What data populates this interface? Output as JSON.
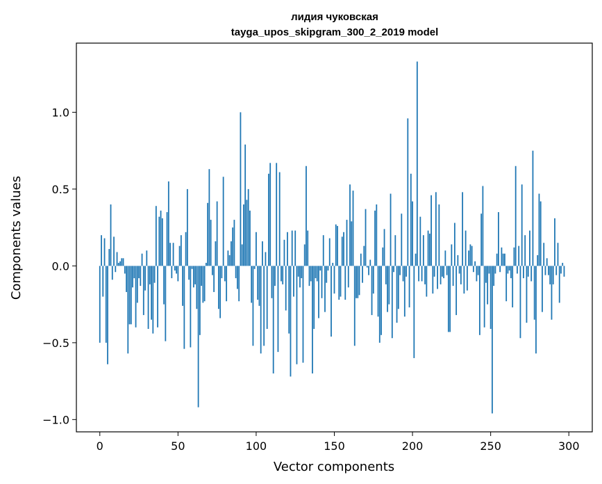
{
  "chart_data": {
    "type": "bar",
    "title": "лидия чуковская",
    "subtitle": "tayga_upos_skipgram_300_2_2019 model",
    "xlabel": "Vector components",
    "ylabel": "Components values",
    "xlim": [
      -15,
      315
    ],
    "ylim": [
      -1.08,
      1.45
    ],
    "xticks": [
      0,
      50,
      100,
      150,
      200,
      250,
      300
    ],
    "yticks": [
      -1.0,
      -0.5,
      0.0,
      0.5,
      1.0
    ],
    "xtick_labels": [
      "0",
      "50",
      "100",
      "150",
      "200",
      "250",
      "300"
    ],
    "ytick_labels": [
      "−1.0",
      "−0.5",
      "0.0",
      "0.5",
      "1.0"
    ],
    "bar_color": "#1f77b4",
    "grid": false,
    "legend": "none",
    "values": [
      -0.5,
      0.2,
      -0.2,
      0.18,
      -0.5,
      -0.64,
      0.11,
      0.4,
      -0.09,
      0.19,
      -0.04,
      0.09,
      0.02,
      0.03,
      0.05,
      0.05,
      -0.05,
      -0.17,
      -0.57,
      -0.38,
      -0.38,
      -0.14,
      -0.08,
      -0.4,
      -0.24,
      -0.08,
      -0.13,
      0.08,
      -0.32,
      -0.16,
      0.1,
      -0.41,
      -0.12,
      -0.35,
      -0.44,
      -0.11,
      0.39,
      -0.4,
      0.32,
      0.36,
      0.31,
      -0.25,
      -0.49,
      0.35,
      0.55,
      0.15,
      -0.08,
      0.15,
      -0.03,
      -0.05,
      -0.1,
      0.13,
      0.2,
      -0.26,
      -0.54,
      0.22,
      0.5,
      -0.09,
      -0.53,
      -0.02,
      -0.14,
      -0.12,
      -0.28,
      -0.92,
      -0.45,
      -0.13,
      -0.24,
      -0.23,
      0.02,
      0.41,
      0.63,
      0.3,
      -0.06,
      -0.17,
      0.16,
      0.42,
      -0.28,
      -0.34,
      -0.08,
      0.58,
      -0.1,
      -0.23,
      0.1,
      0.07,
      0.16,
      0.25,
      0.3,
      -0.08,
      -0.15,
      -0.23,
      1.0,
      0.14,
      0.4,
      0.79,
      0.43,
      0.5,
      0.36,
      -0.24,
      -0.52,
      -0.02,
      0.22,
      -0.22,
      -0.26,
      -0.57,
      0.16,
      -0.52,
      0.09,
      -0.41,
      0.6,
      0.67,
      -0.21,
      -0.7,
      -0.13,
      0.67,
      -0.56,
      0.61,
      -0.1,
      -0.12,
      0.17,
      -0.29,
      0.22,
      -0.44,
      -0.72,
      0.23,
      -0.2,
      0.23,
      -0.64,
      -0.07,
      -0.14,
      -0.08,
      -0.63,
      0.14,
      0.65,
      0.23,
      -0.13,
      -0.1,
      -0.7,
      -0.41,
      -0.08,
      -0.1,
      -0.34,
      -0.03,
      -0.21,
      0.2,
      -0.3,
      -0.11,
      -0.03,
      0.18,
      -0.46,
      0.02,
      -0.18,
      0.27,
      0.26,
      -0.22,
      -0.2,
      0.19,
      0.22,
      -0.22,
      0.3,
      -0.14,
      0.53,
      0.29,
      0.49,
      -0.52,
      -0.21,
      -0.21,
      -0.19,
      0.08,
      -0.11,
      0.13,
      0.37,
      -0.01,
      -0.06,
      0.04,
      -0.32,
      -0.18,
      0.36,
      0.4,
      -0.33,
      -0.5,
      -0.45,
      0.12,
      0.24,
      -0.12,
      -0.3,
      -0.25,
      0.47,
      -0.47,
      -0.04,
      0.2,
      -0.37,
      -0.28,
      -0.06,
      0.34,
      -0.1,
      -0.33,
      -0.07,
      0.96,
      -0.27,
      0.6,
      0.42,
      -0.6,
      0.08,
      1.33,
      -0.1,
      0.32,
      -0.1,
      0.2,
      -0.12,
      -0.2,
      0.23,
      0.21,
      0.46,
      -0.18,
      -0.07,
      0.48,
      -0.15,
      0.4,
      -0.12,
      -0.07,
      -0.08,
      0.1,
      -0.06,
      -0.43,
      -0.43,
      0.14,
      -0.13,
      0.28,
      -0.32,
      0.07,
      -0.05,
      -0.12,
      0.48,
      -0.18,
      0.23,
      -0.16,
      0.1,
      0.14,
      0.13,
      -0.04,
      0.03,
      -0.1,
      -0.06,
      -0.45,
      0.34,
      0.52,
      -0.4,
      -0.11,
      -0.25,
      -0.05,
      -0.41,
      -0.96,
      -0.13,
      -0.05,
      0.08,
      0.35,
      -0.04,
      0.12,
      0.08,
      0.08,
      -0.23,
      -0.05,
      -0.03,
      -0.08,
      -0.27,
      0.12,
      0.65,
      -0.05,
      0.13,
      -0.47,
      0.53,
      -0.08,
      0.2,
      -0.37,
      -0.07,
      0.23,
      -0.1,
      0.75,
      -0.35,
      -0.57,
      0.07,
      0.47,
      0.42,
      -0.3,
      0.15,
      -0.06,
      0.05,
      -0.06,
      -0.12,
      -0.35,
      -0.12,
      0.31,
      -0.06,
      0.15,
      -0.24,
      -0.05,
      0.02,
      -0.07
    ]
  }
}
